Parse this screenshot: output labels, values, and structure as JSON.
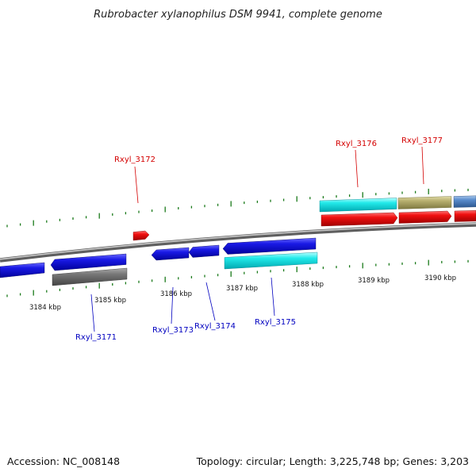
{
  "title": "Rubrobacter xylanophilus DSM 9941, complete genome",
  "footer": {
    "accession": "Accession: NC_008148",
    "summary": "Topology: circular; Length: 3,225,748 bp; Genes: 3,203"
  },
  "colors": {
    "forward_label": "#d40000",
    "reverse_label": "#0000c0",
    "tick": "#1a7a1a",
    "backbone": "#888888"
  },
  "scale_labels": [
    {
      "text": "3184 kbp",
      "kbp": 3184
    },
    {
      "text": "3185 kbp",
      "kbp": 3185
    },
    {
      "text": "3186 kbp",
      "kbp": 3186
    },
    {
      "text": "3187 kbp",
      "kbp": 3187
    },
    {
      "text": "3188 kbp",
      "kbp": 3188
    },
    {
      "text": "3189 kbp",
      "kbp": 3189
    },
    {
      "text": "3190 kbp",
      "kbp": 3190
    }
  ],
  "gene_labels": [
    {
      "text": "Rxyl_3171",
      "strand": "reverse"
    },
    {
      "text": "Rxyl_3172",
      "strand": "forward"
    },
    {
      "text": "Rxyl_3173",
      "strand": "reverse"
    },
    {
      "text": "Rxyl_3174",
      "strand": "reverse"
    },
    {
      "text": "Rxyl_3175",
      "strand": "reverse"
    },
    {
      "text": "Rxyl_3176",
      "strand": "forward"
    },
    {
      "text": "Rxyl_3177",
      "strand": "forward"
    }
  ]
}
